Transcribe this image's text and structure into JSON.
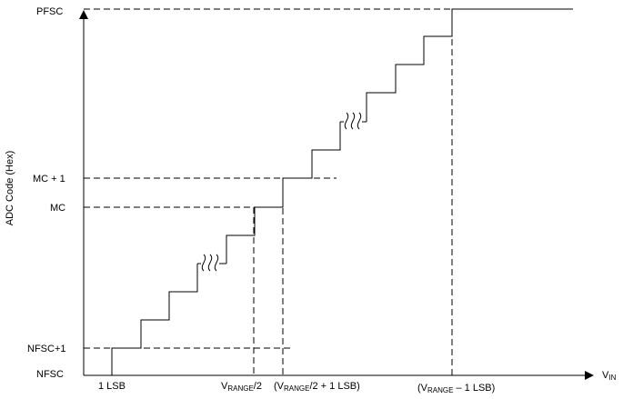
{
  "y_axis_title": "ADC Code (Hex)",
  "y_ticks": {
    "pfsc": "PFSC",
    "mc_plus_1": "MC + 1",
    "mc": "MC",
    "nfsc_plus_1": "NFSC+1",
    "nfsc": "NFSC"
  },
  "x_axis": {
    "vin_main": "V",
    "vin_sub": "IN"
  },
  "x_ticks": {
    "lsb": "1 LSB",
    "half_main": "V",
    "half_sub": "RANGE",
    "half_tail": "/2",
    "half_plus_open": "(V",
    "half_plus_sub": "RANGE",
    "half_plus_tail": "/2 + 1 LSB)",
    "full_open": "(V",
    "full_sub": "RANGE",
    "full_tail": " – 1 LSB)"
  },
  "break_symbol": "∬"
}
